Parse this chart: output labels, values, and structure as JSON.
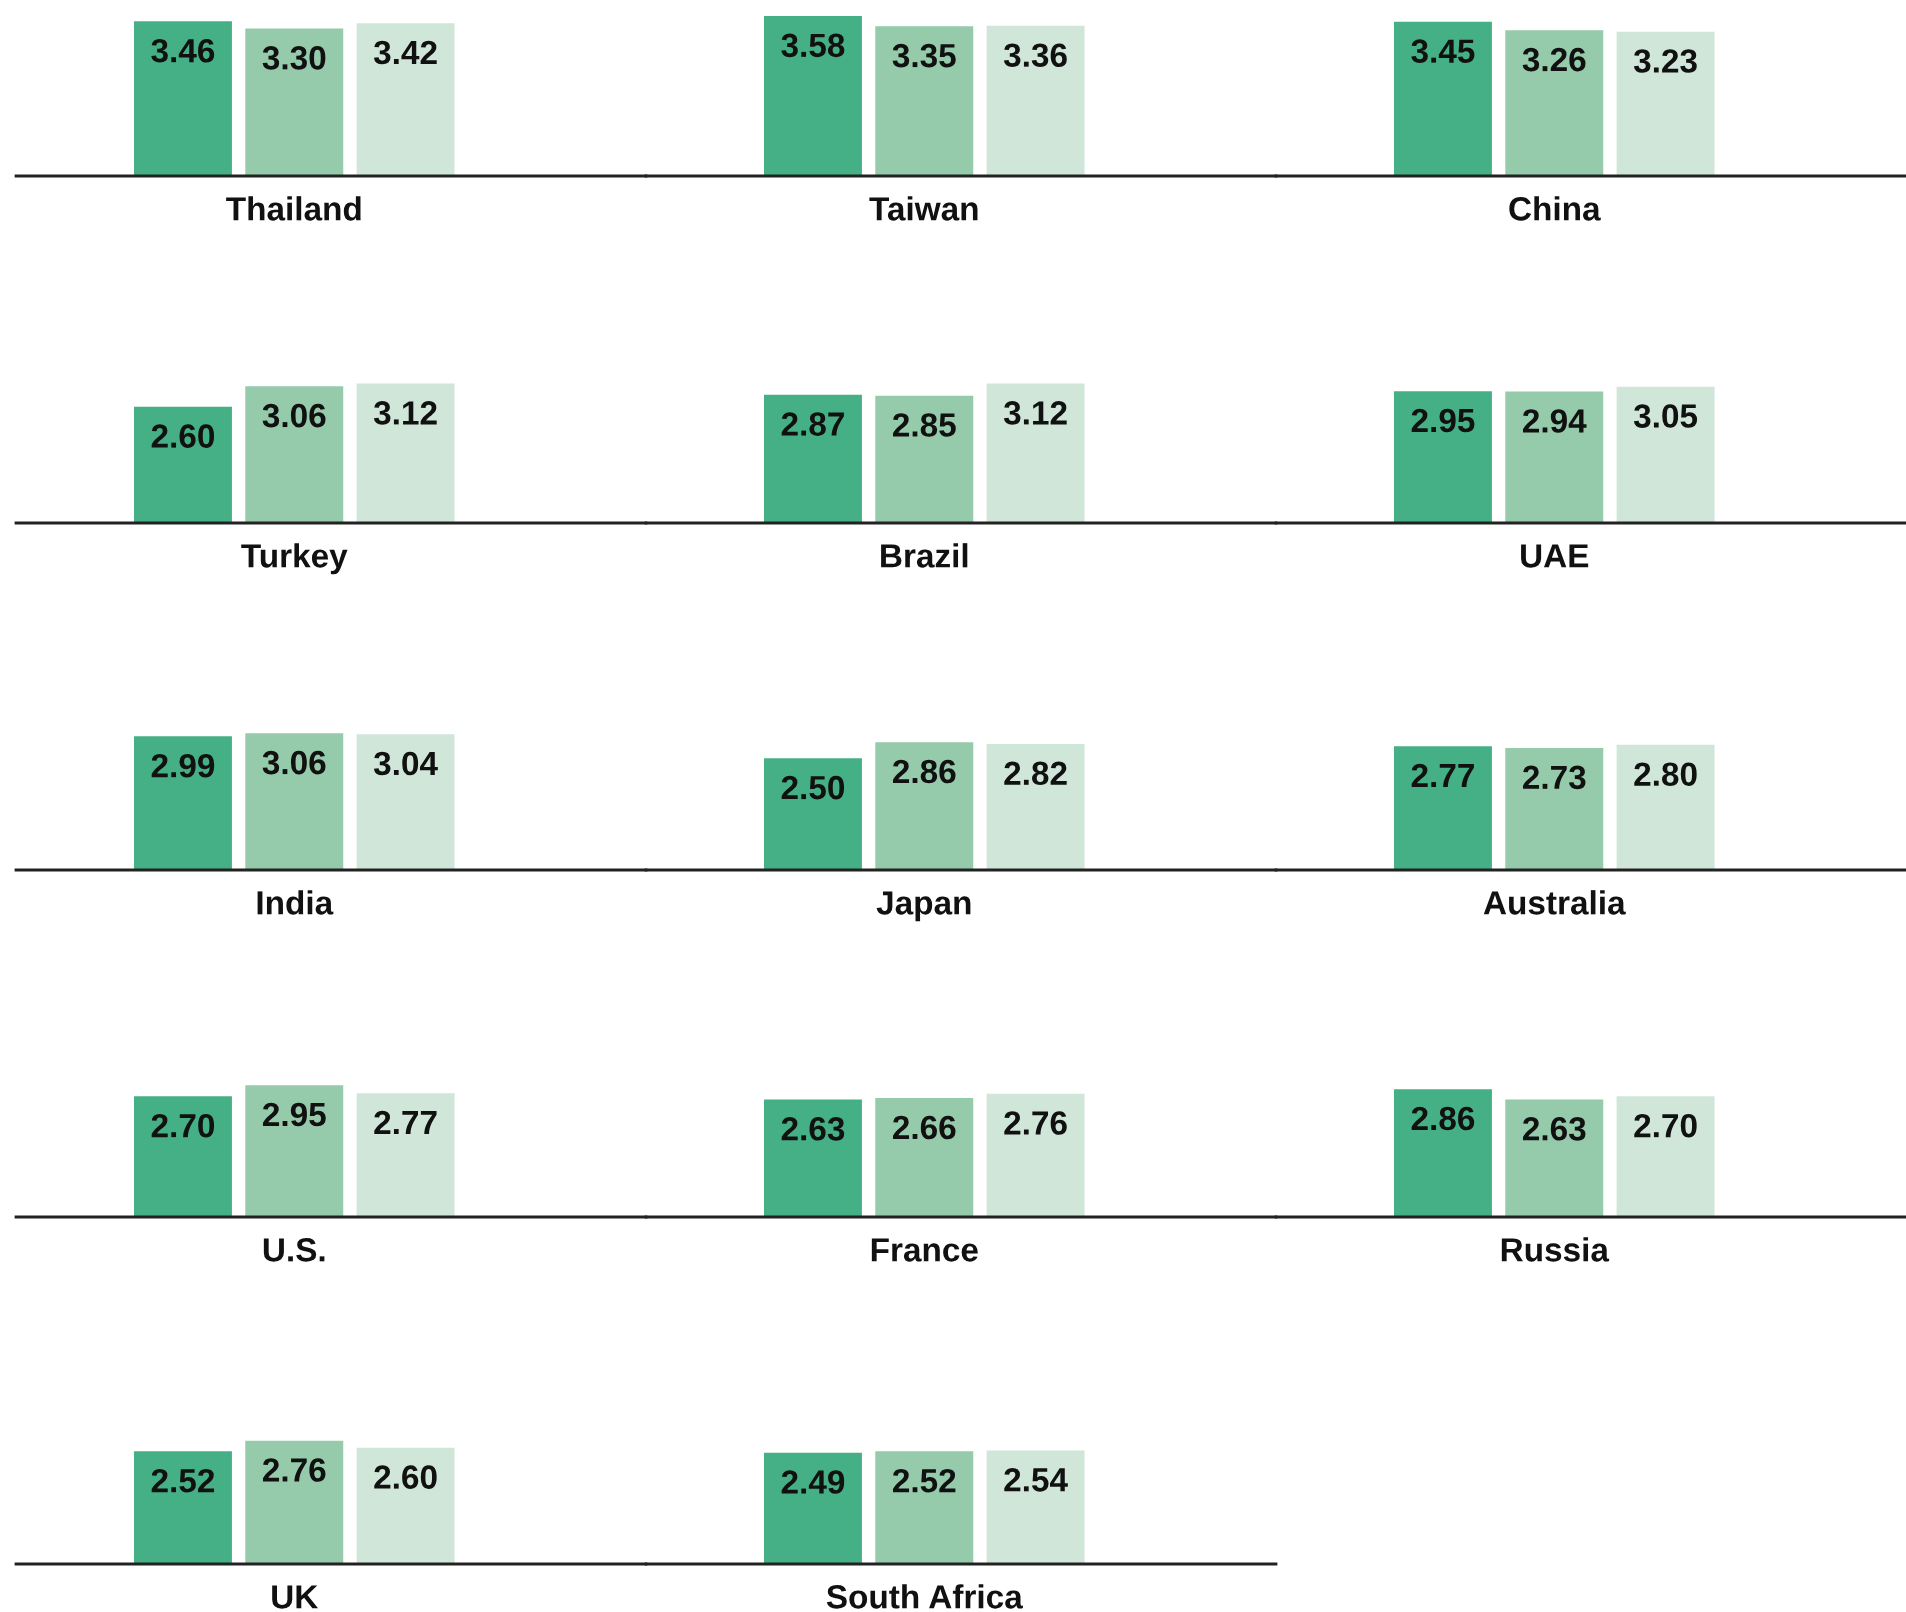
{
  "chart_data": [
    {
      "type": "bar",
      "xlabel": "Thailand",
      "categories": [
        null
      ],
      "series": [
        {
          "color": "#45b085",
          "values": [
            3.46
          ],
          "value_labels": [
            "3.46"
          ]
        },
        {
          "color": "#95cbab",
          "values": [
            3.3
          ],
          "value_labels": [
            "3.30"
          ]
        },
        {
          "color": "#cfe6d9",
          "values": [
            3.42
          ],
          "value_labels": [
            "3.42"
          ]
        }
      ]
    },
    {
      "type": "bar",
      "xlabel": "Taiwan",
      "categories": [
        null
      ],
      "series": [
        {
          "color": "#45b085",
          "values": [
            3.58
          ],
          "value_labels": [
            "3.58"
          ]
        },
        {
          "color": "#95cbab",
          "values": [
            3.35
          ],
          "value_labels": [
            "3.35"
          ]
        },
        {
          "color": "#cfe6d9",
          "values": [
            3.36
          ],
          "value_labels": [
            "3.36"
          ]
        }
      ]
    },
    {
      "type": "bar",
      "xlabel": "China",
      "categories": [
        null
      ],
      "series": [
        {
          "color": "#45b085",
          "values": [
            3.45
          ],
          "value_labels": [
            "3.45"
          ]
        },
        {
          "color": "#95cbab",
          "values": [
            3.26
          ],
          "value_labels": [
            "3.26"
          ]
        },
        {
          "color": "#cfe6d9",
          "values": [
            3.23
          ],
          "value_labels": [
            "3.23"
          ]
        }
      ]
    },
    {
      "type": "bar",
      "xlabel": "Turkey",
      "categories": [
        null
      ],
      "series": [
        {
          "color": "#45b085",
          "values": [
            2.6
          ],
          "value_labels": [
            "2.60"
          ]
        },
        {
          "color": "#95cbab",
          "values": [
            3.06
          ],
          "value_labels": [
            "3.06"
          ]
        },
        {
          "color": "#cfe6d9",
          "values": [
            3.12
          ],
          "value_labels": [
            "3.12"
          ]
        }
      ]
    },
    {
      "type": "bar",
      "xlabel": "Brazil",
      "categories": [
        null
      ],
      "series": [
        {
          "color": "#45b085",
          "values": [
            2.87
          ],
          "value_labels": [
            "2.87"
          ]
        },
        {
          "color": "#95cbab",
          "values": [
            2.85
          ],
          "value_labels": [
            "2.85"
          ]
        },
        {
          "color": "#cfe6d9",
          "values": [
            3.12
          ],
          "value_labels": [
            "3.12"
          ]
        }
      ]
    },
    {
      "type": "bar",
      "xlabel": "UAE",
      "categories": [
        null
      ],
      "series": [
        {
          "color": "#45b085",
          "values": [
            2.95
          ],
          "value_labels": [
            "2.95"
          ]
        },
        {
          "color": "#95cbab",
          "values": [
            2.94
          ],
          "value_labels": [
            "2.94"
          ]
        },
        {
          "color": "#cfe6d9",
          "values": [
            3.05
          ],
          "value_labels": [
            "3.05"
          ]
        }
      ]
    },
    {
      "type": "bar",
      "xlabel": "India",
      "categories": [
        null
      ],
      "series": [
        {
          "color": "#45b085",
          "values": [
            2.99
          ],
          "value_labels": [
            "2.99"
          ]
        },
        {
          "color": "#95cbab",
          "values": [
            3.06
          ],
          "value_labels": [
            "3.06"
          ]
        },
        {
          "color": "#cfe6d9",
          "values": [
            3.04
          ],
          "value_labels": [
            "3.04"
          ]
        }
      ]
    },
    {
      "type": "bar",
      "xlabel": "Japan",
      "categories": [
        null
      ],
      "series": [
        {
          "color": "#45b085",
          "values": [
            2.5
          ],
          "value_labels": [
            "2.50"
          ]
        },
        {
          "color": "#95cbab",
          "values": [
            2.86
          ],
          "value_labels": [
            "2.86"
          ]
        },
        {
          "color": "#cfe6d9",
          "values": [
            2.82
          ],
          "value_labels": [
            "2.82"
          ]
        }
      ]
    },
    {
      "type": "bar",
      "xlabel": "Australia",
      "categories": [
        null
      ],
      "series": [
        {
          "color": "#45b085",
          "values": [
            2.77
          ],
          "value_labels": [
            "2.77"
          ]
        },
        {
          "color": "#95cbab",
          "values": [
            2.73
          ],
          "value_labels": [
            "2.73"
          ]
        },
        {
          "color": "#cfe6d9",
          "values": [
            2.8
          ],
          "value_labels": [
            "2.80"
          ]
        }
      ]
    },
    {
      "type": "bar",
      "xlabel": "U.S.",
      "categories": [
        null
      ],
      "series": [
        {
          "color": "#45b085",
          "values": [
            2.7
          ],
          "value_labels": [
            "2.70"
          ]
        },
        {
          "color": "#95cbab",
          "values": [
            2.95
          ],
          "value_labels": [
            "2.95"
          ]
        },
        {
          "color": "#cfe6d9",
          "values": [
            2.77
          ],
          "value_labels": [
            "2.77"
          ]
        }
      ]
    },
    {
      "type": "bar",
      "xlabel": "France",
      "categories": [
        null
      ],
      "series": [
        {
          "color": "#45b085",
          "values": [
            2.63
          ],
          "value_labels": [
            "2.63"
          ]
        },
        {
          "color": "#95cbab",
          "values": [
            2.66
          ],
          "value_labels": [
            "2.66"
          ]
        },
        {
          "color": "#cfe6d9",
          "values": [
            2.76
          ],
          "value_labels": [
            "2.76"
          ]
        }
      ]
    },
    {
      "type": "bar",
      "xlabel": "Russia",
      "categories": [
        null
      ],
      "series": [
        {
          "color": "#45b085",
          "values": [
            2.86
          ],
          "value_labels": [
            "2.86"
          ]
        },
        {
          "color": "#95cbab",
          "values": [
            2.63
          ],
          "value_labels": [
            "2.63"
          ]
        },
        {
          "color": "#cfe6d9",
          "values": [
            2.7
          ],
          "value_labels": [
            "2.70"
          ]
        }
      ]
    },
    {
      "type": "bar",
      "xlabel": "UK",
      "categories": [
        null
      ],
      "series": [
        {
          "color": "#45b085",
          "values": [
            2.52
          ],
          "value_labels": [
            "2.52"
          ]
        },
        {
          "color": "#95cbab",
          "values": [
            2.76
          ],
          "value_labels": [
            "2.76"
          ]
        },
        {
          "color": "#cfe6d9",
          "values": [
            2.6
          ],
          "value_labels": [
            "2.60"
          ]
        }
      ]
    },
    {
      "type": "bar",
      "xlabel": "South Africa",
      "categories": [
        null
      ],
      "series": [
        {
          "color": "#45b085",
          "values": [
            2.49
          ],
          "value_labels": [
            "2.49"
          ]
        },
        {
          "color": "#95cbab",
          "values": [
            2.52
          ],
          "value_labels": [
            "2.52"
          ]
        },
        {
          "color": "#cfe6d9",
          "values": [
            2.54
          ],
          "value_labels": [
            "2.54"
          ]
        }
      ]
    }
  ]
}
